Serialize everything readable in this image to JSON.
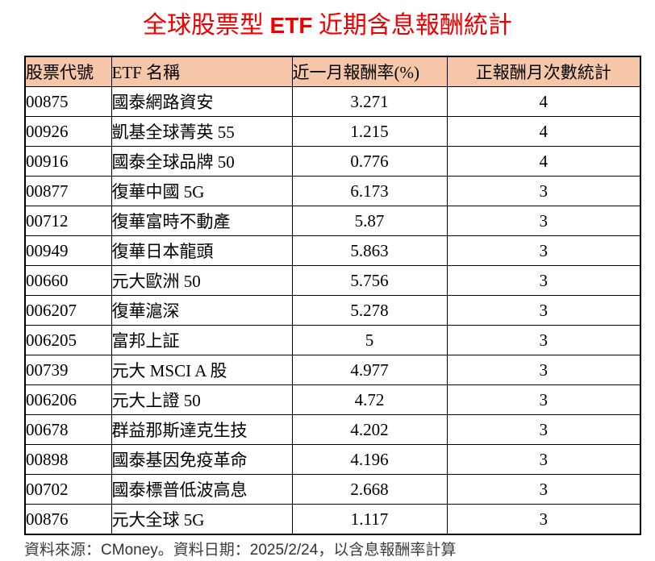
{
  "title": {
    "part1": "全球股票型 ",
    "part2": "ETF",
    "part3": " 近期含息報酬統計"
  },
  "colors": {
    "title_text": "#ee0000",
    "header_background": "#f6c6a8",
    "table_border": "#000000",
    "footer_text": "#3d3d3d"
  },
  "chart_data": {
    "type": "table",
    "title": "全球股票型 ETF 近期含息報酬統計",
    "columns": [
      "股票代號",
      "ETF 名稱",
      "近一月報酬率(%)",
      "正報酬月次數統計"
    ],
    "rows": [
      [
        "00875",
        "國泰網路資安",
        3.271,
        4
      ],
      [
        "00926",
        "凱基全球菁英 55",
        1.215,
        4
      ],
      [
        "00916",
        "國泰全球品牌 50",
        0.776,
        4
      ],
      [
        "00877",
        "復華中國 5G",
        6.173,
        3
      ],
      [
        "00712",
        "復華富時不動產",
        5.87,
        3
      ],
      [
        "00949",
        "復華日本龍頭",
        5.863,
        3
      ],
      [
        "00660",
        "元大歐洲 50",
        5.756,
        3
      ],
      [
        "006207",
        "復華滬深",
        5.278,
        3
      ],
      [
        "006205",
        "富邦上証",
        5,
        3
      ],
      [
        "00739",
        "元大 MSCI A 股",
        4.977,
        3
      ],
      [
        "006206",
        "元大上證 50",
        4.72,
        3
      ],
      [
        "00678",
        "群益那斯達克生技",
        4.202,
        3
      ],
      [
        "00898",
        "國泰基因免疫革命",
        4.196,
        3
      ],
      [
        "00702",
        "國泰標普低波高息",
        2.668,
        3
      ],
      [
        "00876",
        "元大全球 5G",
        1.117,
        3
      ]
    ]
  },
  "footer": {
    "p1": "資料來源：",
    "p2": "CMoney",
    "p3": "。資料日期：",
    "p4": "2025/2/24",
    "p5": "，以含息報酬率計算"
  }
}
